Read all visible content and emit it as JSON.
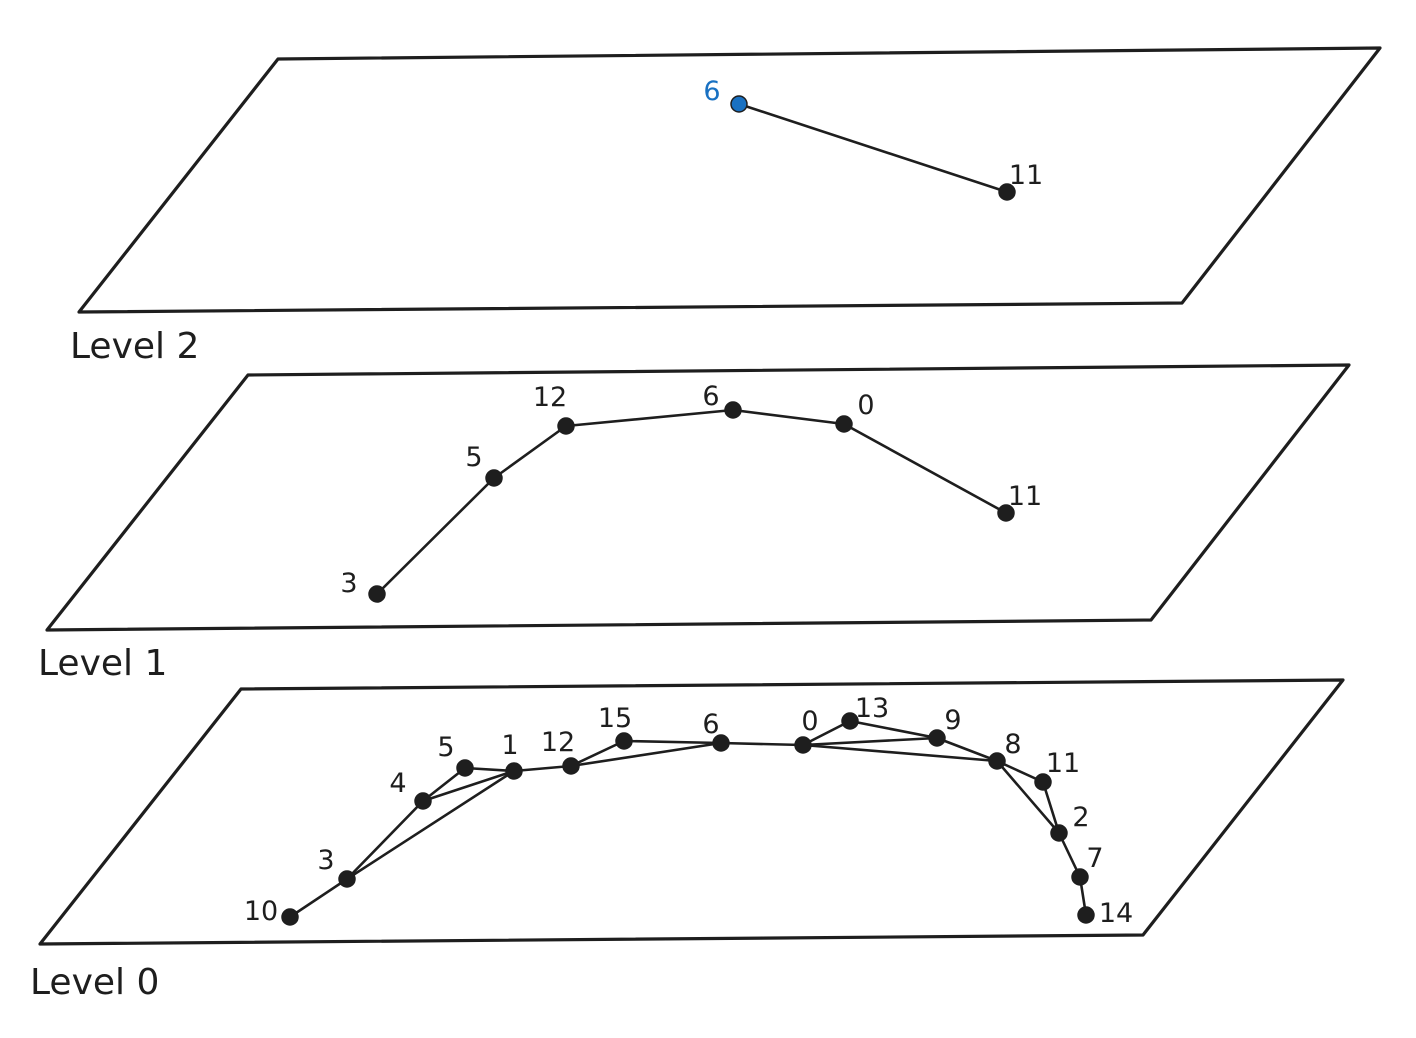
{
  "colors": {
    "stroke": "#1e1e1e",
    "entry_point": "#1971c2",
    "background": "#ffffff"
  },
  "levels": [
    {
      "label": "Level 2",
      "nodes": [
        {
          "id": "6",
          "label": "6",
          "entry": true
        },
        {
          "id": "11",
          "label": "11"
        }
      ],
      "edges": [
        [
          "6",
          "11"
        ]
      ]
    },
    {
      "label": "Level 1",
      "nodes": [
        {
          "id": "3",
          "label": "3"
        },
        {
          "id": "5",
          "label": "5"
        },
        {
          "id": "12",
          "label": "12"
        },
        {
          "id": "6",
          "label": "6"
        },
        {
          "id": "0",
          "label": "0"
        },
        {
          "id": "11",
          "label": "11"
        }
      ],
      "edges": [
        [
          "3",
          "5"
        ],
        [
          "5",
          "12"
        ],
        [
          "12",
          "6"
        ],
        [
          "6",
          "0"
        ],
        [
          "0",
          "11"
        ]
      ]
    },
    {
      "label": "Level 0",
      "nodes": [
        {
          "id": "10",
          "label": "10"
        },
        {
          "id": "3",
          "label": "3"
        },
        {
          "id": "4",
          "label": "4"
        },
        {
          "id": "5",
          "label": "5"
        },
        {
          "id": "1",
          "label": "1"
        },
        {
          "id": "12",
          "label": "12"
        },
        {
          "id": "15",
          "label": "15"
        },
        {
          "id": "6",
          "label": "6"
        },
        {
          "id": "0",
          "label": "0"
        },
        {
          "id": "13",
          "label": "13"
        },
        {
          "id": "9",
          "label": "9"
        },
        {
          "id": "8",
          "label": "8"
        },
        {
          "id": "11",
          "label": "11"
        },
        {
          "id": "2",
          "label": "2"
        },
        {
          "id": "7",
          "label": "7"
        },
        {
          "id": "14",
          "label": "14"
        }
      ],
      "edges": [
        [
          "10",
          "3"
        ],
        [
          "3",
          "4"
        ],
        [
          "3",
          "1"
        ],
        [
          "4",
          "5"
        ],
        [
          "4",
          "1"
        ],
        [
          "5",
          "1"
        ],
        [
          "1",
          "12"
        ],
        [
          "12",
          "15"
        ],
        [
          "12",
          "6"
        ],
        [
          "15",
          "6"
        ],
        [
          "6",
          "0"
        ],
        [
          "0",
          "13"
        ],
        [
          "0",
          "9"
        ],
        [
          "0",
          "8"
        ],
        [
          "13",
          "9"
        ],
        [
          "9",
          "8"
        ],
        [
          "8",
          "11"
        ],
        [
          "8",
          "2"
        ],
        [
          "11",
          "2"
        ],
        [
          "2",
          "7"
        ],
        [
          "7",
          "14"
        ]
      ]
    }
  ]
}
